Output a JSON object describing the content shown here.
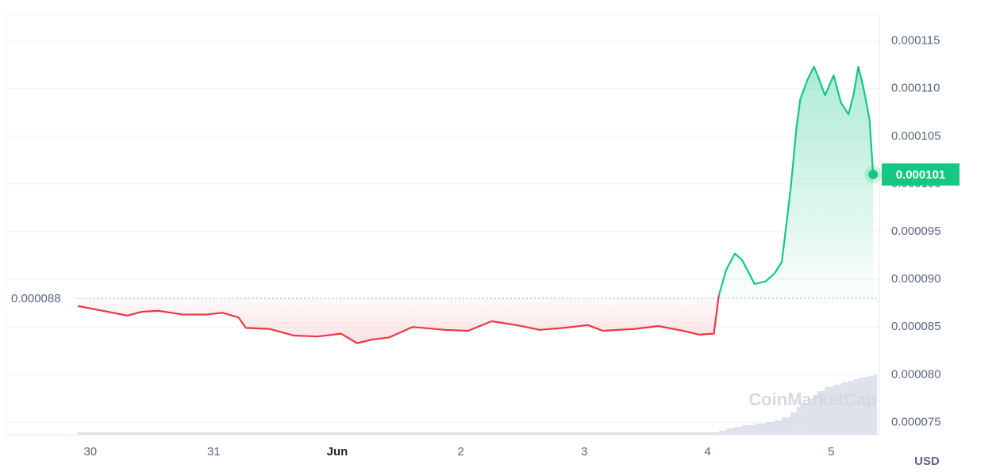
{
  "chart_data": {
    "type": "line",
    "x": [
      -0.1,
      0.1,
      0.3,
      0.42,
      0.55,
      0.75,
      0.94,
      1.07,
      1.2,
      1.26,
      1.45,
      1.65,
      1.84,
      2.03,
      2.16,
      2.29,
      2.42,
      2.61,
      2.87,
      3.06,
      3.25,
      3.45,
      3.64,
      3.83,
      4.03,
      4.15,
      4.41,
      4.6,
      4.8,
      4.93,
      5.05,
      5.09,
      5.15,
      5.22,
      5.28,
      5.38,
      5.47,
      5.54,
      5.6,
      5.67,
      5.72,
      5.75,
      5.81,
      5.86,
      5.89,
      5.95,
      6.02,
      6.08,
      6.14,
      6.18,
      6.22,
      6.26,
      6.31,
      6.34
    ],
    "series": [
      {
        "color": "#ea3943",
        "values": [
          8.72e-05,
          8.67e-05,
          8.62e-05,
          8.66e-05,
          8.67e-05,
          8.63e-05,
          8.63e-05,
          8.65e-05,
          8.6e-05,
          8.49e-05,
          8.48e-05,
          8.41e-05,
          8.4e-05,
          8.43e-05,
          8.33e-05,
          8.37e-05,
          8.39e-05,
          8.5e-05,
          8.47e-05,
          8.46e-05,
          8.56e-05,
          8.52e-05,
          8.47e-05,
          8.49e-05,
          8.52e-05,
          8.46e-05,
          8.48e-05,
          8.51e-05,
          8.46e-05,
          8.42e-05,
          8.43e-05,
          8.83e-05,
          null,
          null,
          null,
          null,
          null,
          null,
          null,
          null,
          null,
          null,
          null,
          null,
          null,
          null,
          null,
          null,
          null,
          null,
          null,
          null,
          null,
          null
        ]
      },
      {
        "color": "#16c784",
        "values": [
          null,
          null,
          null,
          null,
          null,
          null,
          null,
          null,
          null,
          null,
          null,
          null,
          null,
          null,
          null,
          null,
          null,
          null,
          null,
          null,
          null,
          null,
          null,
          null,
          null,
          null,
          null,
          null,
          null,
          null,
          null,
          8.83e-05,
          9.1e-05,
          9.27e-05,
          9.2e-05,
          8.95e-05,
          8.98e-05,
          9.06e-05,
          9.18e-05,
          9.93e-05,
          0.000106,
          0.0001089,
          0.000111,
          0.0001123,
          0.0001114,
          0.0001093,
          0.0001114,
          0.0001085,
          0.0001073,
          0.0001093,
          0.0001123,
          0.0001102,
          0.0001068,
          0.000101
        ]
      }
    ],
    "volume": [
      3,
      3,
      3,
      3,
      3,
      3,
      3,
      3,
      3,
      3,
      3,
      3,
      3,
      3,
      3,
      3,
      3,
      3,
      3,
      3,
      3,
      3,
      3,
      3,
      3,
      3,
      3,
      3,
      3,
      3,
      3,
      5,
      8,
      10,
      12,
      14,
      16,
      18,
      22,
      28,
      35,
      40,
      45,
      50,
      55,
      60,
      63,
      66,
      68,
      70,
      72,
      73,
      74,
      75
    ],
    "vlim": [
      0,
      100
    ],
    "reference_line": 8.8e-05,
    "xlim": [
      -0.68,
      6.39
    ],
    "xticks": [
      {
        "value": 0,
        "label": "30"
      },
      {
        "value": 1,
        "label": "31"
      },
      {
        "value": 2,
        "label": "Jun"
      },
      {
        "value": 3,
        "label": "2"
      },
      {
        "value": 4,
        "label": "3"
      },
      {
        "value": 5,
        "label": "4"
      },
      {
        "value": 6,
        "label": "5"
      }
    ],
    "ylim": [
      7.37e-05,
      0.0001178
    ],
    "yticks": [
      7.5e-05,
      {
        "value": 8e-05,
        "label": "0.000080"
      },
      8.5e-05,
      {
        "value": 9e-05,
        "label": "0.000090"
      },
      9.5e-05,
      {
        "value": 0.0001,
        "label": "0.000100"
      },
      0.000105,
      {
        "value": 0.00011,
        "label": "0.000110"
      },
      0.000115
    ],
    "grid": true,
    "currency": "USD",
    "watermark": "CoinMarketCap"
  }
}
